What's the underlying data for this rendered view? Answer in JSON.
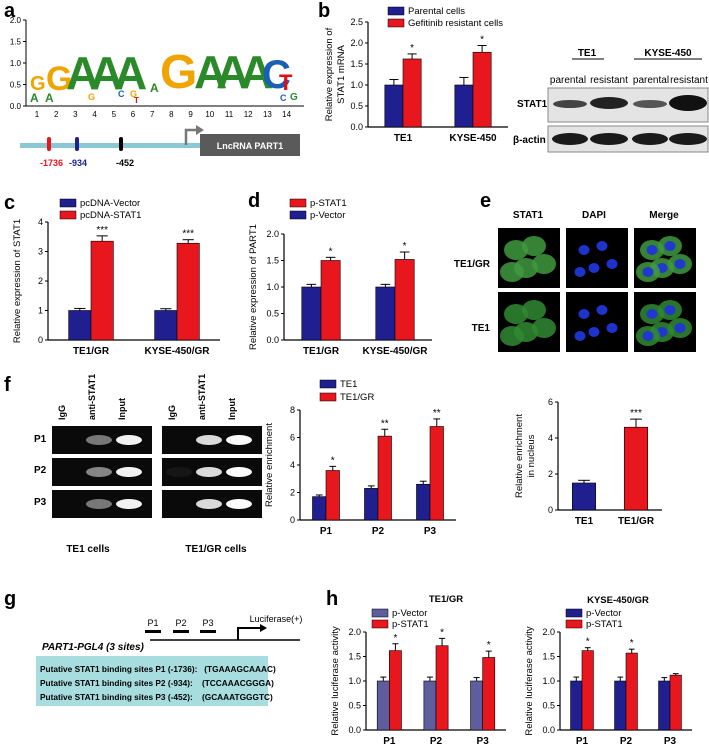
{
  "panel_letters": {
    "a": "a",
    "b": "b",
    "c": "c",
    "d": "d",
    "e": "e",
    "f": "f",
    "g": "g",
    "h": "h"
  },
  "colors": {
    "blue": "#1f1f8f",
    "red": "#e8161d",
    "lavender": "#5e5e9e",
    "teal_box": "#a8dde0",
    "promoter_line": "#8cc7d4",
    "gray_box": "#5a5a5a"
  },
  "logo": {
    "y_ticks": [
      "0.0",
      "0.5",
      "1.0",
      "1.5",
      "2.0"
    ],
    "x_positions": [
      "1",
      "2",
      "3",
      "4",
      "5",
      "6",
      "7",
      "8",
      "9",
      "10",
      "11",
      "12",
      "13",
      "14"
    ],
    "promoter_sites": [
      "-1736",
      "-934",
      "-452"
    ],
    "gene_label": "LncRNA PART1"
  },
  "blot_b": {
    "groups": [
      "TE1",
      "KYSE-450"
    ],
    "lanes": [
      "parental",
      "resistant",
      "parental",
      "resistant"
    ],
    "rows": [
      "STAT1",
      "β-actin"
    ]
  },
  "if_e": {
    "cols": [
      "STAT1",
      "DAPI",
      "Merge"
    ],
    "rows": [
      "TE1/GR",
      "TE1"
    ]
  },
  "chip_f": {
    "lanes": [
      "IgG",
      "anti-STAT1",
      "Input",
      "IgG",
      "anti-STAT1",
      "Input"
    ],
    "rows": [
      "P1",
      "P2",
      "P3"
    ],
    "groups": [
      "TE1 cells",
      "TE1/GR cells"
    ]
  },
  "construct_g": {
    "name": "PART1-PGL4 (3 sites)",
    "sites": [
      "P1",
      "P2",
      "P3"
    ],
    "luciferase": "Luciferase(+)",
    "lines": [
      "Putative STAT1 binding sites P1 (-1736):   (TGAAAGCAAAC)",
      "Putative STAT1 binding sites P2 (-934):    (TCCAAACGGGA)",
      "Putative STAT1 binding sites P3 (-452):    (GCAAATGGGTC)"
    ]
  },
  "chart_data": [
    {
      "id": "b",
      "type": "bar",
      "categories": [
        "TE1",
        "KYSE-450"
      ],
      "ylabel": "Relative expression of STAT1 mRNA",
      "ylim": [
        0,
        2.5
      ],
      "yticks": [
        "0.0",
        "0.5",
        "1.0",
        "1.5",
        "2.0",
        "2.5"
      ],
      "series": [
        {
          "name": "Parental cells",
          "color": "#1f1f8f",
          "values": [
            1.0,
            1.0
          ],
          "err": [
            0.13,
            0.18
          ]
        },
        {
          "name": "Gefitinib resistant cells",
          "color": "#e8161d",
          "values": [
            1.62,
            1.78
          ],
          "err": [
            0.12,
            0.16
          ]
        }
      ],
      "sig": [
        "*",
        "*"
      ]
    },
    {
      "id": "c",
      "type": "bar",
      "categories": [
        "TE1/GR",
        "KYSE-450/GR"
      ],
      "ylabel": "Relative expression of STAT1",
      "ylim": [
        0,
        4
      ],
      "yticks": [
        "0",
        "1",
        "2",
        "3",
        "4"
      ],
      "series": [
        {
          "name": "pcDNA-Vector",
          "color": "#1f1f8f",
          "values": [
            1.0,
            1.0
          ],
          "err": [
            0.07,
            0.06
          ]
        },
        {
          "name": "pcDNA-STAT1",
          "color": "#e8161d",
          "values": [
            3.35,
            3.28
          ],
          "err": [
            0.18,
            0.12
          ]
        }
      ],
      "sig": [
        "***",
        "***"
      ]
    },
    {
      "id": "d",
      "type": "bar",
      "categories": [
        "TE1/GR",
        "KYSE-450/GR"
      ],
      "ylabel": "Relative expression of PART1",
      "ylim": [
        0,
        2.0
      ],
      "yticks": [
        "0.0",
        "0.5",
        "1.0",
        "1.5",
        "2.0"
      ],
      "series": [
        {
          "name": "p-Vector",
          "color": "#1f1f8f",
          "values": [
            1.0,
            1.0
          ],
          "err": [
            0.05,
            0.05
          ]
        },
        {
          "name": "p-STAT1",
          "color": "#e8161d",
          "values": [
            1.5,
            1.52
          ],
          "err": [
            0.06,
            0.14
          ]
        }
      ],
      "legend_order": [
        "p-STAT1",
        "p-Vector"
      ],
      "sig": [
        "*",
        "*"
      ]
    },
    {
      "id": "e",
      "type": "bar",
      "categories": [
        "TE1",
        "TE1/GR"
      ],
      "ylabel": "Relative enrichment in nucleus",
      "ylim": [
        0,
        6
      ],
      "yticks": [
        "0",
        "2",
        "4",
        "6"
      ],
      "series": [
        {
          "name": "",
          "color": "#1f1f8f",
          "colors": [
            "#1f1f8f",
            "#e8161d"
          ],
          "values": [
            1.5,
            4.6
          ],
          "err": [
            0.15,
            0.45
          ]
        }
      ],
      "sig": [
        "",
        "***"
      ],
      "single": true
    },
    {
      "id": "f",
      "type": "bar",
      "categories": [
        "P1",
        "P2",
        "P3"
      ],
      "ylabel": "Relative enrichment",
      "ylim": [
        0,
        8
      ],
      "yticks": [
        "0",
        "2",
        "4",
        "6",
        "8"
      ],
      "series": [
        {
          "name": "TE1",
          "color": "#1f1f8f",
          "values": [
            1.7,
            2.3,
            2.6
          ],
          "err": [
            0.12,
            0.18,
            0.22
          ]
        },
        {
          "name": "TE1/GR",
          "color": "#e8161d",
          "values": [
            3.6,
            6.1,
            6.8
          ],
          "err": [
            0.3,
            0.5,
            0.55
          ]
        }
      ],
      "sig": [
        "*",
        "**",
        "**"
      ]
    },
    {
      "id": "h1",
      "type": "bar",
      "title": "TE1/GR",
      "categories": [
        "P1",
        "P2",
        "P3"
      ],
      "ylabel": "Relative luciferase activity",
      "ylim": [
        0,
        2.0
      ],
      "yticks": [
        "0.0",
        "0.5",
        "1.0",
        "1.5",
        "2.0"
      ],
      "series": [
        {
          "name": "p-Vector",
          "color": "#5e5e9e",
          "values": [
            1.0,
            1.0,
            1.0
          ],
          "err": [
            0.08,
            0.08,
            0.07
          ]
        },
        {
          "name": "p-STAT1",
          "color": "#e8161d",
          "values": [
            1.62,
            1.72,
            1.48
          ],
          "err": [
            0.14,
            0.15,
            0.13
          ]
        }
      ],
      "sig": [
        "*",
        "*",
        "*"
      ]
    },
    {
      "id": "h2",
      "type": "bar",
      "title": "KYSE-450/GR",
      "categories": [
        "P1",
        "P2",
        "P3"
      ],
      "ylabel": "Relative luciferase activity",
      "ylim": [
        0,
        2.0
      ],
      "yticks": [
        "0.0",
        "0.5",
        "1.0",
        "1.5",
        "2.0"
      ],
      "series": [
        {
          "name": "p-Vector",
          "color": "#1f1f8f",
          "values": [
            1.0,
            1.0,
            1.0
          ],
          "err": [
            0.08,
            0.08,
            0.07
          ]
        },
        {
          "name": "p-STAT1",
          "color": "#e8161d",
          "values": [
            1.62,
            1.57,
            1.12
          ],
          "err": [
            0.06,
            0.08,
            0.03
          ]
        }
      ],
      "sig": [
        "*",
        "*",
        ""
      ]
    }
  ]
}
